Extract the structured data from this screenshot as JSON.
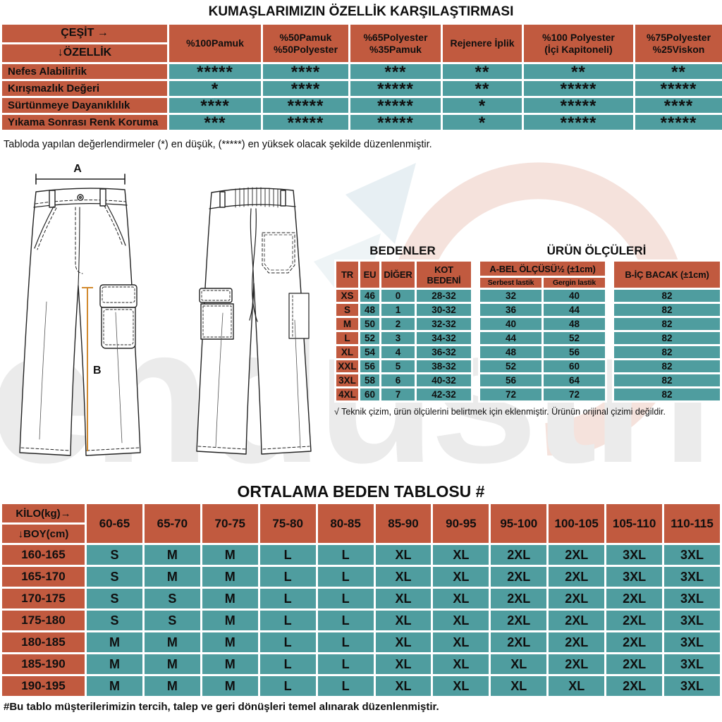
{
  "fabric_table": {
    "title": "KUMAŞLARIMIZIN ÖZELLİK KARŞILAŞTIRMASI",
    "corner_top": "ÇEŞİT →",
    "corner_bottom": "↓ÖZELLİK",
    "columns": [
      "%100Pamuk",
      "%50Pamuk\n%50Polyester",
      "%65Polyester\n%35Pamuk",
      "Rejenere İplik",
      "%100 Polyester\n(İçi Kapitoneli)",
      "%75Polyester\n%25Viskon"
    ],
    "rows": [
      {
        "label": "Nefes Alabilirlik",
        "values": [
          "*****",
          "****",
          "***",
          "**",
          "**",
          "**"
        ]
      },
      {
        "label": "Kırışmazlık Değeri",
        "values": [
          "*",
          "****",
          "*****",
          "**",
          "*****",
          "*****"
        ]
      },
      {
        "label": "Sürtünmeye Dayanıklılık",
        "values": [
          "****",
          "*****",
          "*****",
          "*",
          "*****",
          "****"
        ]
      },
      {
        "label": "Yıkama Sonrası Renk Koruma",
        "values": [
          "***",
          "*****",
          "*****",
          "*",
          "*****",
          "*****"
        ]
      }
    ],
    "note": "Tabloda yapılan değerlendirmeler (*) en düşük, (*****) en yüksek olacak şekilde düzenlenmiştir."
  },
  "diagram": {
    "front_label": "A",
    "inseam_label": "B"
  },
  "sizes_table": {
    "title": "BEDENLER",
    "columns": [
      "TR",
      "EU",
      "DİĞER",
      "KOT BEDENİ"
    ],
    "rows": [
      [
        "XS",
        "46",
        "0",
        "28-32"
      ],
      [
        "S",
        "48",
        "1",
        "30-32"
      ],
      [
        "M",
        "50",
        "2",
        "32-32"
      ],
      [
        "L",
        "52",
        "3",
        "34-32"
      ],
      [
        "XL",
        "54",
        "4",
        "36-32"
      ],
      [
        "XXL",
        "56",
        "5",
        "38-32"
      ],
      [
        "3XL",
        "58",
        "6",
        "40-32"
      ],
      [
        "4XL",
        "60",
        "7",
        "42-32"
      ]
    ]
  },
  "measures_table": {
    "title": "ÜRÜN ÖLÇÜLERİ",
    "group_a": "A-BEL ÖLÇÜSÜ½ (±1cm)",
    "sub_a1": "Serbest lastik",
    "sub_a2": "Gergin lastik",
    "group_b": "B-İÇ BACAK (±1cm)",
    "rows": [
      [
        "32",
        "40",
        "82"
      ],
      [
        "36",
        "44",
        "82"
      ],
      [
        "40",
        "48",
        "82"
      ],
      [
        "44",
        "52",
        "82"
      ],
      [
        "48",
        "56",
        "82"
      ],
      [
        "52",
        "60",
        "82"
      ],
      [
        "56",
        "64",
        "82"
      ],
      [
        "72",
        "72",
        "82"
      ]
    ]
  },
  "tech_note": "√ Teknik çizim, ürün ölçülerini belirtmek için eklenmiştir. Ürünün orijinal çizimi değildir.",
  "size_chart": {
    "title": "ORTALAMA BEDEN TABLOSU #",
    "corner_top": "KİLO(kg)→",
    "corner_bottom": "↓BOY(cm)",
    "columns": [
      "60-65",
      "65-70",
      "70-75",
      "75-80",
      "80-85",
      "85-90",
      "90-95",
      "95-100",
      "100-105",
      "105-110",
      "110-115"
    ],
    "rows": [
      {
        "label": "160-165",
        "values": [
          "S",
          "M",
          "M",
          "L",
          "L",
          "XL",
          "XL",
          "2XL",
          "2XL",
          "3XL",
          "3XL"
        ]
      },
      {
        "label": "165-170",
        "values": [
          "S",
          "M",
          "M",
          "L",
          "L",
          "XL",
          "XL",
          "2XL",
          "2XL",
          "3XL",
          "3XL"
        ]
      },
      {
        "label": "170-175",
        "values": [
          "S",
          "S",
          "M",
          "L",
          "L",
          "XL",
          "XL",
          "2XL",
          "2XL",
          "2XL",
          "3XL"
        ]
      },
      {
        "label": "175-180",
        "values": [
          "S",
          "S",
          "M",
          "L",
          "L",
          "XL",
          "XL",
          "2XL",
          "2XL",
          "2XL",
          "3XL"
        ]
      },
      {
        "label": "180-185",
        "values": [
          "M",
          "M",
          "M",
          "L",
          "L",
          "XL",
          "XL",
          "2XL",
          "2XL",
          "2XL",
          "3XL"
        ]
      },
      {
        "label": "185-190",
        "values": [
          "M",
          "M",
          "M",
          "L",
          "L",
          "XL",
          "XL",
          "XL",
          "2XL",
          "2XL",
          "3XL"
        ]
      },
      {
        "label": "190-195",
        "values": [
          "M",
          "M",
          "M",
          "L",
          "L",
          "XL",
          "XL",
          "XL",
          "XL",
          "2XL",
          "3XL"
        ]
      }
    ],
    "note": "#Bu tablo müşterilerimizin tercih, talep ve geri dönüşleri temel alınarak düzenlenmiştir."
  },
  "watermark": {
    "text": "endüstri"
  },
  "colors": {
    "orange": "#c15a3f",
    "teal": "#4f9d9f",
    "measure_line": "#d28a2e",
    "watermark_gray": "#ebebeb"
  }
}
